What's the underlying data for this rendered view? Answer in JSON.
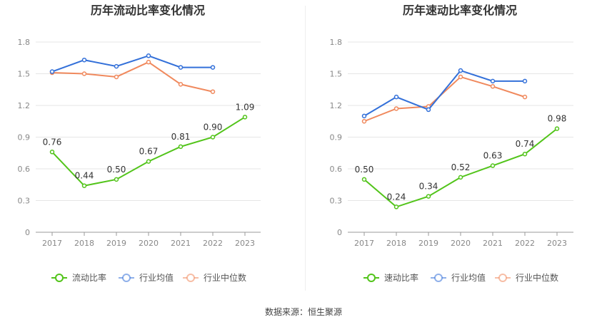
{
  "source_label": "数据来源：恒生聚源",
  "colors": {
    "primary": "#52c41a",
    "industry_avg": "#3370d9",
    "industry_median": "#f0895d"
  },
  "chart_data": [
    {
      "type": "line",
      "title": "历年流动比率变化情况",
      "x": [
        "2017",
        "2018",
        "2019",
        "2020",
        "2021",
        "2022",
        "2023"
      ],
      "ylim": [
        0,
        1.8
      ],
      "yticks": [
        "0",
        "0.3",
        "0.6",
        "0.9",
        "1.2",
        "1.5",
        "1.8"
      ],
      "grid": true,
      "legend_position": "bottom",
      "series": [
        {
          "name": "流动比率",
          "color": "#52c41a",
          "labels": true,
          "values": [
            0.76,
            0.44,
            0.5,
            0.67,
            0.81,
            0.9,
            1.09
          ],
          "value_labels": [
            "0.76",
            "0.44",
            "0.50",
            "0.67",
            "0.81",
            "0.90",
            "1.09"
          ]
        },
        {
          "name": "行业均值",
          "color": "#3370d9",
          "labels": false,
          "values": [
            1.52,
            1.63,
            1.57,
            1.67,
            1.56,
            1.56,
            null
          ]
        },
        {
          "name": "行业中位数",
          "color": "#f0895d",
          "labels": false,
          "values": [
            1.51,
            1.5,
            1.47,
            1.61,
            1.4,
            1.33,
            null
          ]
        }
      ]
    },
    {
      "type": "line",
      "title": "历年速动比率变化情况",
      "x": [
        "2017",
        "2018",
        "2019",
        "2020",
        "2021",
        "2022",
        "2023"
      ],
      "ylim": [
        0,
        1.8
      ],
      "yticks": [
        "0",
        "0.3",
        "0.6",
        "0.9",
        "1.2",
        "1.5",
        "1.8"
      ],
      "grid": true,
      "legend_position": "bottom",
      "series": [
        {
          "name": "速动比率",
          "color": "#52c41a",
          "labels": true,
          "values": [
            0.5,
            0.24,
            0.34,
            0.52,
            0.63,
            0.74,
            0.98
          ],
          "value_labels": [
            "0.50",
            "0.24",
            "0.34",
            "0.52",
            "0.63",
            "0.74",
            "0.98"
          ]
        },
        {
          "name": "行业均值",
          "color": "#3370d9",
          "labels": false,
          "values": [
            1.1,
            1.28,
            1.16,
            1.53,
            1.43,
            1.43,
            null
          ]
        },
        {
          "name": "行业中位数",
          "color": "#f0895d",
          "labels": false,
          "values": [
            1.05,
            1.17,
            1.19,
            1.47,
            1.38,
            1.28,
            null
          ]
        }
      ]
    }
  ]
}
